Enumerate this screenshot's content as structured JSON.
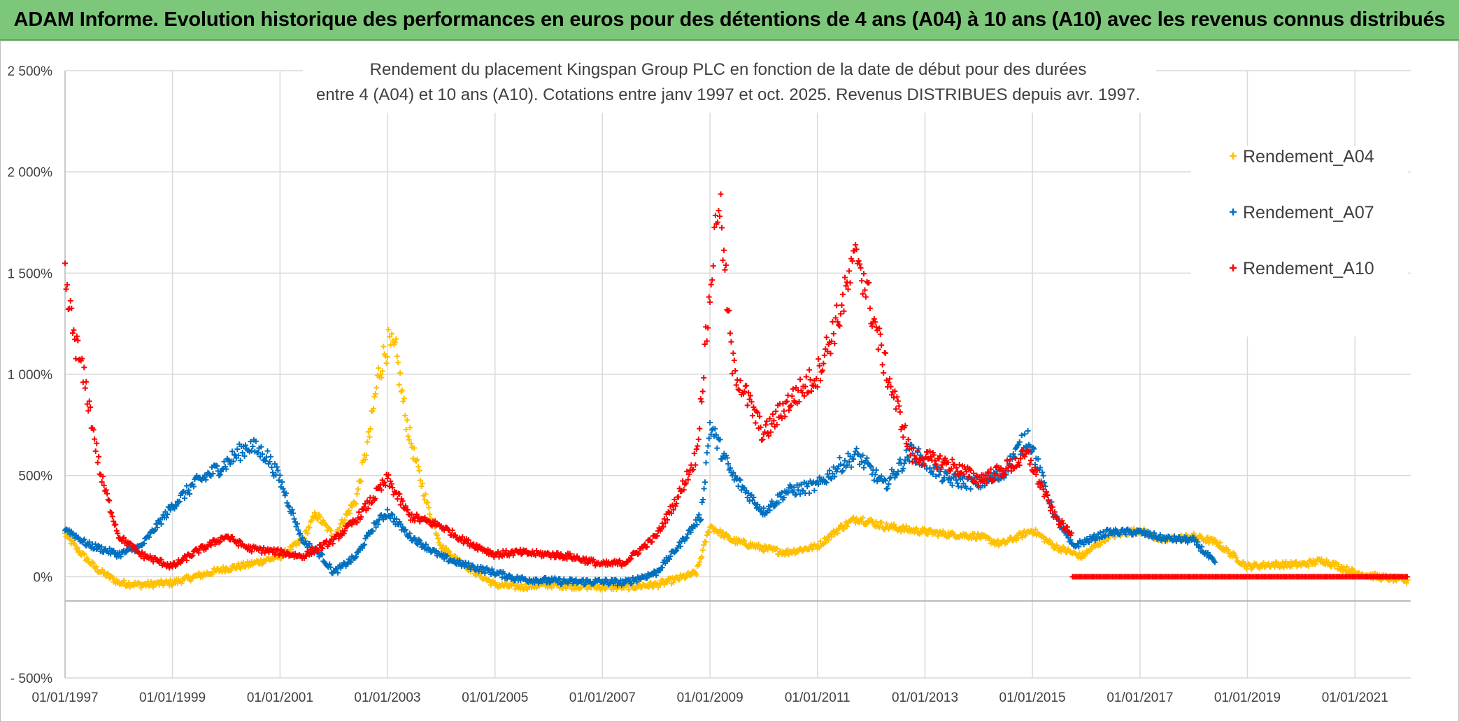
{
  "banner": {
    "title": "ADAM Informe. Evolution historique des performances en euros pour des détentions de 4 ans (A04) à 10 ans (A10) avec les revenus connus distribués"
  },
  "chart_data": {
    "type": "scatter",
    "title_lines": [
      "Rendement du placement Kingspan Group PLC en fonction de la date de début pour des durées",
      "entre 4 (A04) et 10 ans (A10). Cotations entre janv 1997 et oct. 2025. Revenus DISTRIBUES depuis avr. 1997."
    ],
    "xlabel": "",
    "ylabel": "",
    "x_range": [
      "1997-01-01",
      "2022-01-15"
    ],
    "x_ticks": [
      "01/01/1997",
      "01/01/1999",
      "01/01/2001",
      "01/01/2003",
      "01/01/2005",
      "01/01/2007",
      "01/01/2009",
      "01/01/2011",
      "01/01/2013",
      "01/01/2015",
      "01/01/2017",
      "01/01/2019",
      "01/01/2021"
    ],
    "y_range": [
      -500,
      2500
    ],
    "y_unit": "%",
    "y_ticks": [
      -500,
      0,
      500,
      1000,
      1500,
      2000,
      2500
    ],
    "y_tick_labels": [
      "- 500%",
      "0%",
      "500%",
      "1 000%",
      "1 500%",
      "2 000%",
      "2 500%"
    ],
    "grid": true,
    "legend_position": "right",
    "marker": "+",
    "series": [
      {
        "name": "Rendement_A04",
        "color": "#ffc000",
        "points": [
          [
            "1997-01-01",
            210
          ],
          [
            "1997-04-01",
            130
          ],
          [
            "1997-08-01",
            40
          ],
          [
            "1998-01-01",
            -30
          ],
          [
            "1998-06-01",
            -40
          ],
          [
            "1999-01-01",
            -30
          ],
          [
            "1999-06-01",
            0
          ],
          [
            "2000-01-01",
            40
          ],
          [
            "2000-06-01",
            60
          ],
          [
            "2001-01-01",
            100
          ],
          [
            "2001-06-01",
            180
          ],
          [
            "2001-09-01",
            310
          ],
          [
            "2002-01-01",
            200
          ],
          [
            "2002-06-01",
            380
          ],
          [
            "2002-09-01",
            700
          ],
          [
            "2002-11-01",
            1000
          ],
          [
            "2003-01-01",
            1150
          ],
          [
            "2003-03-01",
            1100
          ],
          [
            "2003-05-01",
            800
          ],
          [
            "2003-07-01",
            600
          ],
          [
            "2003-10-01",
            350
          ],
          [
            "2004-01-01",
            150
          ],
          [
            "2004-06-01",
            60
          ],
          [
            "2005-01-01",
            -40
          ],
          [
            "2005-06-01",
            -50
          ],
          [
            "2006-01-01",
            -40
          ],
          [
            "2006-06-01",
            -45
          ],
          [
            "2007-01-01",
            -50
          ],
          [
            "2007-06-01",
            -50
          ],
          [
            "2008-01-01",
            -40
          ],
          [
            "2008-06-01",
            -10
          ],
          [
            "2008-10-01",
            20
          ],
          [
            "2009-01-01",
            250
          ],
          [
            "2009-06-01",
            180
          ],
          [
            "2010-01-01",
            140
          ],
          [
            "2010-06-01",
            120
          ],
          [
            "2011-01-01",
            150
          ],
          [
            "2011-06-01",
            240
          ],
          [
            "2011-10-01",
            290
          ],
          [
            "2012-04-01",
            250
          ],
          [
            "2012-10-01",
            230
          ],
          [
            "2013-06-01",
            210
          ],
          [
            "2014-01-01",
            200
          ],
          [
            "2014-06-01",
            160
          ],
          [
            "2015-01-01",
            230
          ],
          [
            "2015-06-01",
            150
          ],
          [
            "2015-12-01",
            100
          ],
          [
            "2016-06-01",
            200
          ],
          [
            "2017-01-01",
            230
          ],
          [
            "2017-06-01",
            180
          ],
          [
            "2018-01-01",
            200
          ],
          [
            "2018-06-01",
            170
          ],
          [
            "2019-01-01",
            50
          ],
          [
            "2019-06-01",
            60
          ],
          [
            "2020-01-01",
            60
          ],
          [
            "2020-06-01",
            80
          ],
          [
            "2021-01-01",
            20
          ],
          [
            "2021-06-01",
            0
          ],
          [
            "2022-01-01",
            -20
          ]
        ]
      },
      {
        "name": "Rendement_A07",
        "color": "#0070c0",
        "points": [
          [
            "1997-01-01",
            240
          ],
          [
            "1997-06-01",
            160
          ],
          [
            "1998-01-01",
            110
          ],
          [
            "1998-06-01",
            150
          ],
          [
            "1999-01-01",
            350
          ],
          [
            "1999-06-01",
            460
          ],
          [
            "2000-01-01",
            560
          ],
          [
            "2000-06-01",
            650
          ],
          [
            "2000-10-01",
            600
          ],
          [
            "2001-01-01",
            480
          ],
          [
            "2001-06-01",
            180
          ],
          [
            "2001-10-01",
            110
          ],
          [
            "2002-01-01",
            20
          ],
          [
            "2002-06-01",
            100
          ],
          [
            "2002-10-01",
            250
          ],
          [
            "2003-01-01",
            320
          ],
          [
            "2003-06-01",
            200
          ],
          [
            "2004-01-01",
            100
          ],
          [
            "2004-06-01",
            60
          ],
          [
            "2005-01-01",
            20
          ],
          [
            "2005-06-01",
            -10
          ],
          [
            "2006-01-01",
            -20
          ],
          [
            "2006-06-01",
            -25
          ],
          [
            "2007-01-01",
            -25
          ],
          [
            "2007-06-01",
            -30
          ],
          [
            "2008-01-01",
            20
          ],
          [
            "2008-06-01",
            150
          ],
          [
            "2008-11-01",
            300
          ],
          [
            "2009-01-01",
            750
          ],
          [
            "2009-06-01",
            500
          ],
          [
            "2010-01-01",
            320
          ],
          [
            "2010-06-01",
            420
          ],
          [
            "2011-01-01",
            450
          ],
          [
            "2011-06-01",
            550
          ],
          [
            "2011-10-01",
            600
          ],
          [
            "2012-04-01",
            450
          ],
          [
            "2012-10-01",
            620
          ],
          [
            "2013-06-01",
            480
          ],
          [
            "2014-01-01",
            460
          ],
          [
            "2014-06-01",
            500
          ],
          [
            "2014-12-01",
            700
          ],
          [
            "2015-06-01",
            300
          ],
          [
            "2015-10-01",
            150
          ],
          [
            "2016-06-01",
            220
          ],
          [
            "2017-01-01",
            220
          ],
          [
            "2017-06-01",
            190
          ],
          [
            "2018-01-01",
            180
          ],
          [
            "2018-06-01",
            60
          ]
        ]
      },
      {
        "name": "Rendement_A10",
        "color": "#ff0000",
        "points": [
          [
            "1997-01-01",
            1450
          ],
          [
            "1997-03-01",
            1200
          ],
          [
            "1997-06-01",
            900
          ],
          [
            "1997-09-01",
            500
          ],
          [
            "1998-01-01",
            200
          ],
          [
            "1998-06-01",
            110
          ],
          [
            "1999-01-01",
            50
          ],
          [
            "1999-06-01",
            120
          ],
          [
            "2000-01-01",
            200
          ],
          [
            "2000-06-01",
            140
          ],
          [
            "2001-01-01",
            120
          ],
          [
            "2001-06-01",
            100
          ],
          [
            "2002-01-01",
            180
          ],
          [
            "2002-06-01",
            280
          ],
          [
            "2003-01-01",
            480
          ],
          [
            "2003-06-01",
            300
          ],
          [
            "2004-01-01",
            250
          ],
          [
            "2004-06-01",
            180
          ],
          [
            "2005-01-01",
            110
          ],
          [
            "2005-06-01",
            120
          ],
          [
            "2006-01-01",
            110
          ],
          [
            "2006-06-01",
            100
          ],
          [
            "2007-01-01",
            60
          ],
          [
            "2007-06-01",
            70
          ],
          [
            "2008-01-01",
            200
          ],
          [
            "2008-06-01",
            400
          ],
          [
            "2008-10-01",
            600
          ],
          [
            "2009-01-01",
            1400
          ],
          [
            "2009-03-01",
            1900
          ],
          [
            "2009-06-01",
            1050
          ],
          [
            "2010-01-01",
            700
          ],
          [
            "2010-06-01",
            850
          ],
          [
            "2011-01-01",
            1000
          ],
          [
            "2011-06-01",
            1300
          ],
          [
            "2011-10-01",
            1600
          ],
          [
            "2012-04-01",
            1050
          ],
          [
            "2012-10-01",
            600
          ],
          [
            "2013-06-01",
            560
          ],
          [
            "2014-01-01",
            480
          ],
          [
            "2014-06-01",
            520
          ],
          [
            "2014-12-01",
            600
          ],
          [
            "2015-06-01",
            300
          ],
          [
            "2015-10-01",
            200
          ]
        ]
      },
      {
        "name": "Rendement_A10",
        "color": "#ff0000",
        "points": [
          [
            "2015-10-01",
            0
          ],
          [
            "2022-01-01",
            0
          ]
        ]
      }
    ]
  }
}
